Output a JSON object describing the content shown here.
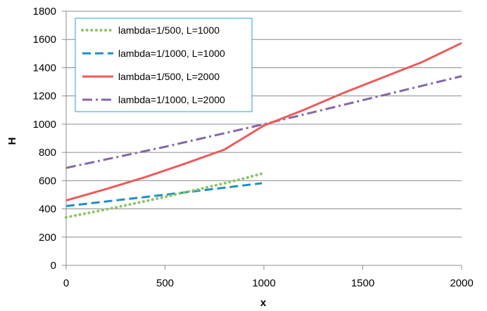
{
  "chart_data": {
    "type": "line",
    "title": "",
    "xlabel": "x",
    "ylabel": "H",
    "xlim": [
      0,
      2000
    ],
    "ylim": [
      0,
      1800
    ],
    "xticks": [
      0,
      500,
      1000,
      1500,
      2000
    ],
    "yticks": [
      0,
      200,
      400,
      600,
      800,
      1000,
      1200,
      1400,
      1600,
      1800
    ],
    "xtick_labels": [
      "0",
      "500",
      "1000",
      "1500",
      "2000"
    ],
    "ytick_labels": [
      "0",
      "200",
      "400",
      "600",
      "800",
      "1000",
      "1200",
      "1400",
      "1600",
      "1800"
    ],
    "grid": "horizontal",
    "legend_position": "top-left",
    "series": [
      {
        "name": "lambda=1/500, L=1000",
        "color": "#8dc466",
        "style": "dotted",
        "x": [
          0,
          100,
          200,
          300,
          400,
          500,
          600,
          700,
          800,
          900,
          990
        ],
        "y": [
          340,
          368,
          396,
          425,
          455,
          485,
          517,
          549,
          582,
          616,
          650
        ]
      },
      {
        "name": "lambda=1/1000, L=1000",
        "color": "#1f8fc1",
        "style": "dashed",
        "x": [
          0,
          500,
          990
        ],
        "y": [
          420,
          500,
          582
        ]
      },
      {
        "name": "lambda=1/500, L=2000",
        "color": "#ec5b59",
        "style": "solid",
        "x": [
          0,
          200,
          400,
          600,
          800,
          1000,
          1200,
          1400,
          1600,
          1800,
          2000
        ],
        "y": [
          460,
          540,
          625,
          720,
          820,
          990,
          1100,
          1220,
          1330,
          1440,
          1575
        ]
      },
      {
        "name": "lambda=1/1000, L=2000",
        "color": "#8567a8",
        "style": "dashdot",
        "x": [
          0,
          500,
          1000,
          1500,
          2000
        ],
        "y": [
          690,
          840,
          1000,
          1170,
          1340
        ]
      }
    ]
  }
}
